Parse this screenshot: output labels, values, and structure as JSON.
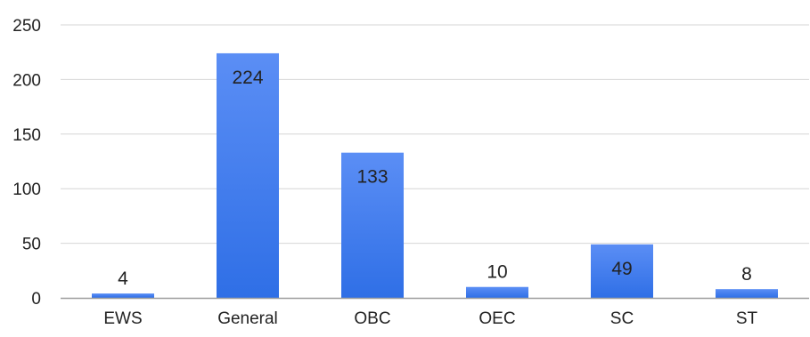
{
  "chart_data": {
    "type": "bar",
    "categories": [
      "EWS",
      "General",
      "OBC",
      "OEC",
      "SC",
      "ST"
    ],
    "values": [
      4,
      224,
      133,
      10,
      49,
      8
    ],
    "data_labels": [
      "4",
      "224",
      "133",
      "10",
      "49",
      "8"
    ],
    "title": "",
    "xlabel": "",
    "ylabel": "",
    "ylim": [
      0,
      250
    ],
    "yticks": [
      0,
      50,
      100,
      150,
      200,
      250
    ],
    "ytick_labels": [
      "0",
      "50",
      "100",
      "150",
      "200",
      "250"
    ],
    "grid": true,
    "legend": "none",
    "colors": {
      "bar_top": "#5b8ef5",
      "bar_bottom": "#2f6fe6",
      "grid": "#d6d6d6",
      "axis": "#9e9e9e",
      "text": "#222222"
    }
  }
}
